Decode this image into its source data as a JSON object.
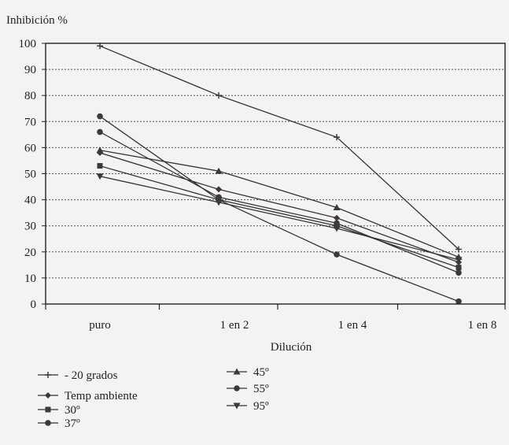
{
  "chart_data": {
    "type": "line",
    "ylabel": "Inhibición %",
    "xlabel": "Dilución",
    "categories": [
      "puro",
      "1 en 2",
      "1 en 4",
      "1 en 8"
    ],
    "ylim": [
      0,
      100
    ],
    "yticks": [
      "0",
      "10",
      "20",
      "30",
      "40",
      "50",
      "60",
      "70",
      "80",
      "90",
      "100"
    ],
    "grid": true,
    "legend_position": "bottom-left",
    "series": [
      {
        "name": "- 20 grados",
        "marker": "plus",
        "values": [
          99,
          80,
          64,
          21
        ]
      },
      {
        "name": "Temp ambiente",
        "marker": "diamond",
        "values": [
          58,
          44,
          33,
          16
        ]
      },
      {
        "name": "30º",
        "marker": "square",
        "values": [
          53,
          40,
          30,
          14
        ]
      },
      {
        "name": "37º",
        "marker": "circle",
        "values": [
          72,
          40,
          19,
          1
        ]
      },
      {
        "name": "45º",
        "marker": "triangle",
        "values": [
          59,
          51,
          37,
          18
        ]
      },
      {
        "name": "55º",
        "marker": "circle",
        "values": [
          66,
          41,
          31,
          12
        ]
      },
      {
        "name": "95º",
        "marker": "triangle-down",
        "values": [
          49,
          39,
          29,
          17
        ]
      }
    ]
  }
}
